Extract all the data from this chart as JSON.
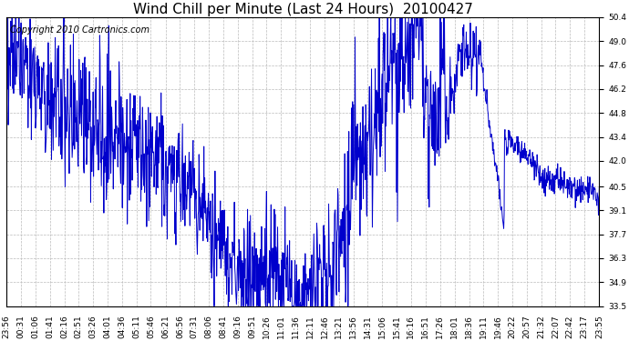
{
  "title": "Wind Chill per Minute (Last 24 Hours)  20100427",
  "copyright": "Copyright 2010 Cartronics.com",
  "line_color": "#0000CC",
  "background_color": "#ffffff",
  "plot_bg_color": "#ffffff",
  "grid_color": "#bbbbbb",
  "ylim": [
    33.5,
    50.4
  ],
  "yticks": [
    33.5,
    34.9,
    36.3,
    37.7,
    39.1,
    40.5,
    42.0,
    43.4,
    44.8,
    46.2,
    47.6,
    49.0,
    50.4
  ],
  "xtick_labels": [
    "23:56",
    "00:31",
    "01:06",
    "01:41",
    "02:16",
    "02:51",
    "03:26",
    "04:01",
    "04:36",
    "05:11",
    "05:46",
    "06:21",
    "06:56",
    "07:31",
    "08:06",
    "08:41",
    "09:16",
    "09:51",
    "10:26",
    "11:01",
    "11:36",
    "12:11",
    "12:46",
    "13:21",
    "13:56",
    "14:31",
    "15:06",
    "15:41",
    "16:16",
    "16:51",
    "17:26",
    "18:01",
    "18:36",
    "19:11",
    "19:46",
    "20:22",
    "20:57",
    "21:32",
    "22:07",
    "22:42",
    "23:17",
    "23:55"
  ],
  "title_fontsize": 11,
  "copyright_fontsize": 7,
  "tick_fontsize": 6.5,
  "line_width": 0.7
}
